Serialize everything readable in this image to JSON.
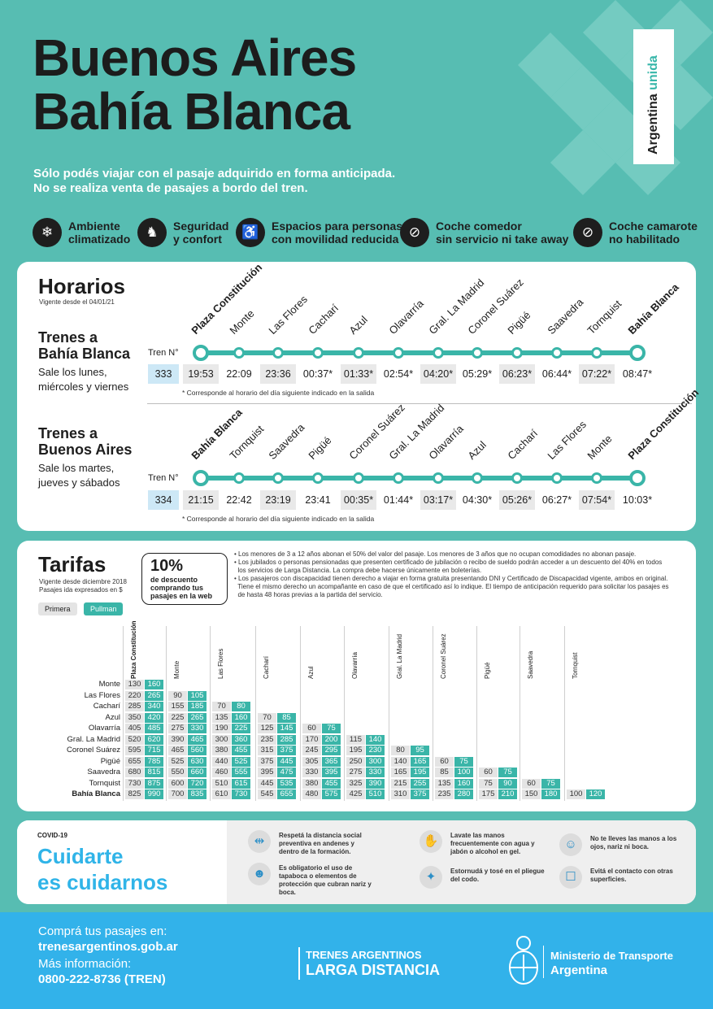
{
  "header": {
    "title_line1": "Buenos Aires",
    "title_line2": "Bahía Blanca",
    "subtitle_line1": "Sólo podés viajar con el pasaje adquirido en forma anticipada.",
    "subtitle_line2": "No se realiza venta de pasajes a bordo del tren.",
    "logo_text": "Argentina ",
    "logo_accent": "unida"
  },
  "features": [
    {
      "icon": "snowflake-icon",
      "l1": "Ambiente",
      "l2": "climatizado"
    },
    {
      "icon": "seat-icon",
      "l1": "Seguridad",
      "l2": "y confort"
    },
    {
      "icon": "wheelchair-icon",
      "l1": "Espacios para personas",
      "l2": "con movilidad reducida"
    },
    {
      "icon": "no-food-icon",
      "l1": "Coche comedor",
      "l2": "sin servicio ni take away"
    },
    {
      "icon": "no-bed-icon",
      "l1": "Coche camarote",
      "l2": "no habilitado"
    }
  ],
  "horarios": {
    "title": "Horarios",
    "valid": "Vigente desde el 04/01/21",
    "tren_label": "Tren N°",
    "to_bb": {
      "title1": "Trenes a",
      "title2": "Bahía Blanca",
      "days1": "Sale los lunes,",
      "days2": "miércoles y viernes",
      "train": "333",
      "stations": [
        "Plaza Constitución",
        "Monte",
        "Las Flores",
        "Cacharí",
        "Azul",
        "Olavarría",
        "Gral. La Madrid",
        "Coronel Suárez",
        "Pigüé",
        "Saavedra",
        "Tornquist",
        "Bahía Blanca"
      ],
      "times": [
        "19:53",
        "22:09",
        "23:36",
        "00:37*",
        "01:33*",
        "02:54*",
        "04:20*",
        "05:29*",
        "06:23*",
        "06:44*",
        "07:22*",
        "08:47*"
      ],
      "note": "* Corresponde al horario del día siguiente indicado en la salida"
    },
    "to_ba": {
      "title1": "Trenes a",
      "title2": "Buenos Aires",
      "days1": "Sale los martes,",
      "days2": "jueves y sábados",
      "train": "334",
      "stations": [
        "Bahía Blanca",
        "Tornquist",
        "Saavedra",
        "Pigüé",
        "Coronel Suárez",
        "Gral. La Madrid",
        "Olavarría",
        "Azul",
        "Cacharí",
        "Las Flores",
        "Monte",
        "Plaza Constitución"
      ],
      "times": [
        "21:15",
        "22:42",
        "23:19",
        "23:41",
        "00:35*",
        "01:44*",
        "03:17*",
        "04:30*",
        "05:26*",
        "06:27*",
        "07:54*",
        "10:03*"
      ],
      "note": "* Corresponde al horario del día siguiente indicado en la salida"
    }
  },
  "tarifas": {
    "title": "Tarifas",
    "valid1": "Vigente desde diciembre 2018",
    "valid2": "Pasajes ida expresados en $",
    "primera": "Primera",
    "pullman": "Pullman",
    "promo_big": "10%",
    "promo_l1": "de descuento",
    "promo_l2": "comprando tus",
    "promo_l3": "pasajes en la web",
    "bullets": [
      "• Los menores de 3 a 12 años abonan el 50% del valor del pasaje. Los menores de 3 años que no ocupan comodidades no abonan pasaje.",
      "• Los jubilados o personas pensionadas que presenten certificado de jubilación o recibo de sueldo podrán acceder a un descuento del 40% en todos",
      "  los servicios de Larga Distancia. La compra debe hacerse únicamente en boleterías.",
      "• Los pasajeros con discapacidad tienen derecho a viajar en forma gratuita presentando DNI y Certificado de Discapacidad vigente, ambos en original.",
      "  Tiene el mismo derecho un acompañante en caso de que el certificado así lo indique. El tiempo de anticipación requerido para solicitar los pasajes es",
      "  de hasta 48 horas previas a la partida del servicio."
    ],
    "columns": [
      "Plaza Constitución",
      "Monte",
      "Las Flores",
      "Cacharí",
      "Azul",
      "Olavarría",
      "Gral. La Madrid",
      "Coronel Suárez",
      "Pigüé",
      "Saavedra",
      "Tornquist"
    ],
    "rows": [
      {
        "name": "Monte",
        "p": [
          [
            "130",
            "160"
          ]
        ]
      },
      {
        "name": "Las Flores",
        "p": [
          [
            "220",
            "265"
          ],
          [
            "90",
            "105"
          ]
        ]
      },
      {
        "name": "Cacharí",
        "p": [
          [
            "285",
            "340"
          ],
          [
            "155",
            "185"
          ],
          [
            "70",
            "80"
          ]
        ]
      },
      {
        "name": "Azul",
        "p": [
          [
            "350",
            "420"
          ],
          [
            "225",
            "265"
          ],
          [
            "135",
            "160"
          ],
          [
            "70",
            "85"
          ]
        ]
      },
      {
        "name": "Olavarría",
        "p": [
          [
            "405",
            "485"
          ],
          [
            "275",
            "330"
          ],
          [
            "190",
            "225"
          ],
          [
            "125",
            "145"
          ],
          [
            "60",
            "75"
          ]
        ]
      },
      {
        "name": "Gral. La Madrid",
        "p": [
          [
            "520",
            "620"
          ],
          [
            "390",
            "465"
          ],
          [
            "300",
            "360"
          ],
          [
            "235",
            "285"
          ],
          [
            "170",
            "200"
          ],
          [
            "115",
            "140"
          ]
        ]
      },
      {
        "name": "Coronel Suárez",
        "p": [
          [
            "595",
            "715"
          ],
          [
            "465",
            "560"
          ],
          [
            "380",
            "455"
          ],
          [
            "315",
            "375"
          ],
          [
            "245",
            "295"
          ],
          [
            "195",
            "230"
          ],
          [
            "80",
            "95"
          ]
        ]
      },
      {
        "name": "Pigüé",
        "p": [
          [
            "655",
            "785"
          ],
          [
            "525",
            "630"
          ],
          [
            "440",
            "525"
          ],
          [
            "375",
            "445"
          ],
          [
            "305",
            "365"
          ],
          [
            "250",
            "300"
          ],
          [
            "140",
            "165"
          ],
          [
            "60",
            "75"
          ]
        ]
      },
      {
        "name": "Saavedra",
        "p": [
          [
            "680",
            "815"
          ],
          [
            "550",
            "660"
          ],
          [
            "460",
            "555"
          ],
          [
            "395",
            "475"
          ],
          [
            "330",
            "395"
          ],
          [
            "275",
            "330"
          ],
          [
            "165",
            "195"
          ],
          [
            "85",
            "100"
          ],
          [
            "60",
            "75"
          ]
        ]
      },
      {
        "name": "Tornquist",
        "p": [
          [
            "730",
            "875"
          ],
          [
            "600",
            "720"
          ],
          [
            "510",
            "615"
          ],
          [
            "445",
            "535"
          ],
          [
            "380",
            "455"
          ],
          [
            "325",
            "390"
          ],
          [
            "215",
            "255"
          ],
          [
            "135",
            "160"
          ],
          [
            "75",
            "90"
          ],
          [
            "60",
            "75"
          ]
        ]
      },
      {
        "name": "Bahía Blanca",
        "p": [
          [
            "825",
            "990"
          ],
          [
            "700",
            "835"
          ],
          [
            "610",
            "730"
          ],
          [
            "545",
            "655"
          ],
          [
            "480",
            "575"
          ],
          [
            "425",
            "510"
          ],
          [
            "310",
            "375"
          ],
          [
            "235",
            "280"
          ],
          [
            "175",
            "210"
          ],
          [
            "150",
            "180"
          ],
          [
            "100",
            "120"
          ]
        ]
      }
    ]
  },
  "covid": {
    "tag": "COVID-19",
    "title1": "Cuidarte",
    "title2": "es cuidarnos",
    "tips": [
      {
        "icon": "distance-icon",
        "text": "Respetá la distancia social preventiva en andenes y dentro de la formación."
      },
      {
        "icon": "handwash-icon",
        "text": "Lavate las manos frecuentemente con agua y jabón o alcohol en gel."
      },
      {
        "icon": "face-touch-icon",
        "text": "No te lleves las manos a los ojos, nariz ni boca."
      },
      {
        "icon": "mask-icon",
        "text": "Es obligatorio el uso de tapaboca o elementos de protección que cubran nariz y boca."
      },
      {
        "icon": "sneeze-icon",
        "text": "Estornudá y tosé en el pliegue del codo."
      },
      {
        "icon": "no-contact-icon",
        "text": "Evitá el contacto con otras superficies."
      }
    ]
  },
  "footer": {
    "buy": "Comprá tus pasajes en:",
    "web": "trenesargentinos.gob.ar",
    "info": "Más información:",
    "phone": "0800-222-8736 (TREN)",
    "brand1": "TRENES ARGENTINOS",
    "brand2": "LARGA DISTANCIA",
    "min1": "Ministerio de Transporte",
    "min2": "Argentina"
  },
  "colors": {
    "teal": "#57bdb2",
    "accent": "#3ab5a8",
    "footer": "#32b2ea"
  }
}
